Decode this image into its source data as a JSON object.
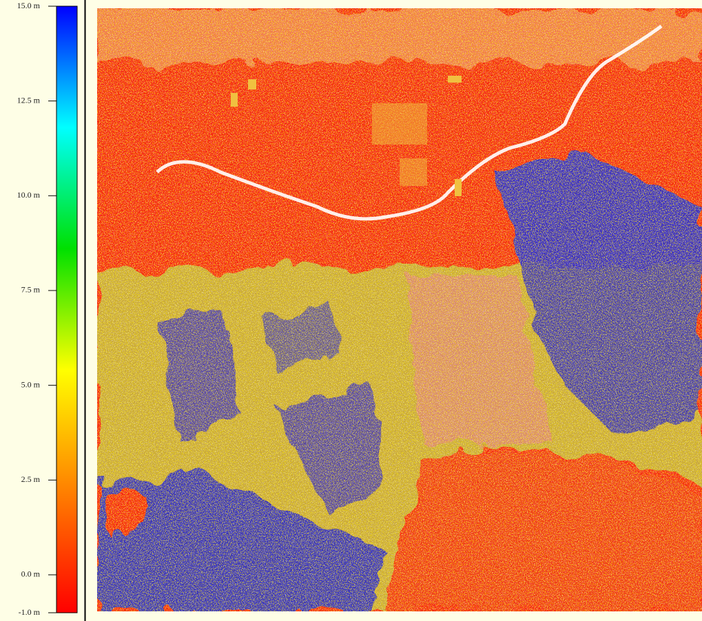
{
  "colorbar": {
    "lim": [
      -1,
      15
    ],
    "ticks": [
      {
        "value": 15,
        "label": "15.0 m"
      },
      {
        "value": 12.5,
        "label": "12.5 m"
      },
      {
        "value": 10,
        "label": "10.0 m"
      },
      {
        "value": 7.5,
        "label": "7.5 m"
      },
      {
        "value": 5,
        "label": "5.0 m"
      },
      {
        "value": 2.5,
        "label": "2.5 m"
      },
      {
        "value": 0,
        "label": "0.0 m"
      },
      {
        "value": -1,
        "label": "-1.0 m"
      }
    ],
    "colors": [
      "#ff0000",
      "#ff8000",
      "#ffff00",
      "#00e000",
      "#00ffff",
      "#0000ff"
    ]
  }
}
